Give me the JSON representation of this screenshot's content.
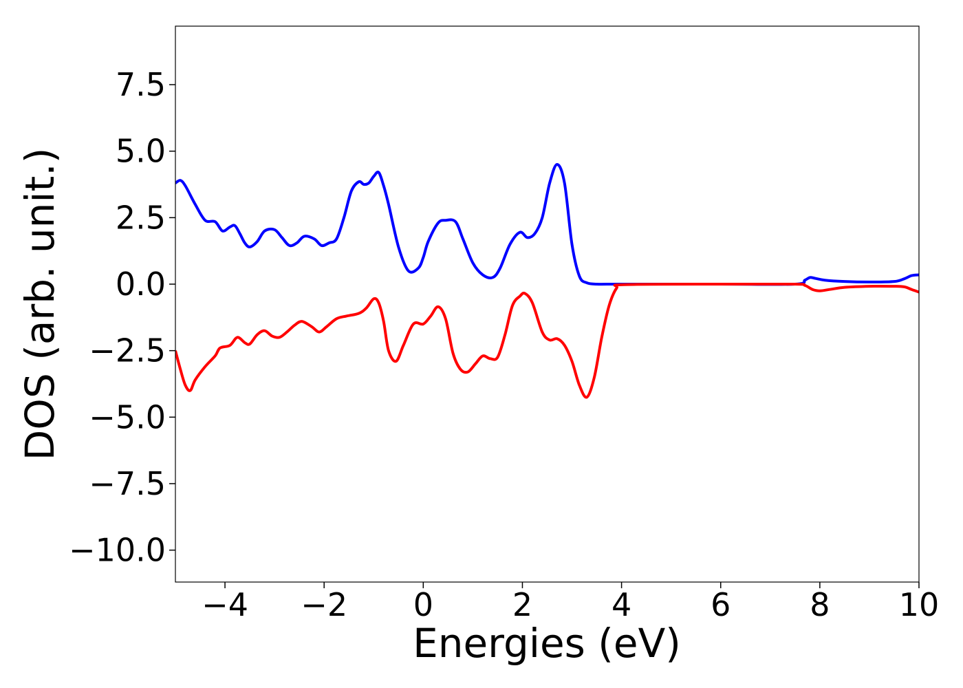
{
  "chart_data": {
    "type": "line",
    "title": "",
    "xlabel": "Energies (eV)",
    "ylabel": "DOS (arb. unit.)",
    "xlim": [
      -5,
      10
    ],
    "ylim": [
      -11.2,
      9.7
    ],
    "grid": false,
    "x_ticks": [
      "−4",
      "−2",
      "0",
      "2",
      "4",
      "6",
      "8",
      "10"
    ],
    "x_tick_values": [
      -4,
      -2,
      0,
      2,
      4,
      6,
      8,
      10
    ],
    "y_ticks": [
      "7.5",
      "5.0",
      "2.5",
      "0.0",
      "−2.5",
      "−5.0",
      "−7.5",
      "−10.0"
    ],
    "y_tick_values": [
      7.5,
      5.0,
      2.5,
      0.0,
      -2.5,
      -5.0,
      -7.5,
      -10.0
    ],
    "series": [
      {
        "color": "#0000ff",
        "x": [
          -5.0,
          -4.9,
          -4.8,
          -4.6,
          -4.4,
          -4.2,
          -4.05,
          -3.9,
          -3.8,
          -3.7,
          -3.6,
          -3.5,
          -3.35,
          -3.2,
          -3.0,
          -2.85,
          -2.7,
          -2.55,
          -2.4,
          -2.2,
          -2.05,
          -1.9,
          -1.75,
          -1.6,
          -1.45,
          -1.3,
          -1.2,
          -1.1,
          -1.0,
          -0.9,
          -0.8,
          -0.7,
          -0.5,
          -0.3,
          -0.1,
          0.0,
          0.1,
          0.3,
          0.45,
          0.65,
          0.8,
          1.0,
          1.2,
          1.4,
          1.55,
          1.75,
          1.95,
          2.1,
          2.25,
          2.4,
          2.55,
          2.7,
          2.85,
          3.0,
          3.15,
          3.3,
          3.5,
          3.8,
          4.0,
          6.0,
          7.5,
          7.7,
          7.8,
          7.9,
          8.1,
          8.5,
          9.0,
          9.5,
          9.7,
          9.85,
          10.0
        ],
        "values": [
          3.8,
          3.9,
          3.7,
          3.0,
          2.4,
          2.35,
          2.0,
          2.15,
          2.2,
          1.9,
          1.55,
          1.4,
          1.6,
          2.0,
          2.05,
          1.75,
          1.45,
          1.55,
          1.8,
          1.7,
          1.45,
          1.55,
          1.7,
          2.5,
          3.5,
          3.85,
          3.75,
          3.8,
          4.05,
          4.2,
          3.7,
          3.0,
          1.4,
          0.5,
          0.6,
          1.0,
          1.6,
          2.3,
          2.4,
          2.35,
          1.7,
          0.8,
          0.35,
          0.25,
          0.6,
          1.5,
          1.95,
          1.75,
          1.9,
          2.5,
          3.8,
          4.5,
          3.8,
          1.5,
          0.3,
          0.05,
          0.0,
          0.0,
          0.0,
          0.0,
          0.0,
          0.15,
          0.25,
          0.22,
          0.15,
          0.1,
          0.08,
          0.1,
          0.2,
          0.32,
          0.35
        ]
      },
      {
        "color": "#ff0000",
        "x": [
          -5.0,
          -4.9,
          -4.8,
          -4.7,
          -4.6,
          -4.4,
          -4.2,
          -4.1,
          -3.9,
          -3.75,
          -3.6,
          -3.5,
          -3.35,
          -3.2,
          -3.05,
          -2.9,
          -2.75,
          -2.6,
          -2.45,
          -2.25,
          -2.1,
          -1.95,
          -1.75,
          -1.55,
          -1.3,
          -1.15,
          -1.0,
          -0.9,
          -0.8,
          -0.7,
          -0.55,
          -0.4,
          -0.2,
          0.0,
          0.15,
          0.3,
          0.45,
          0.6,
          0.75,
          0.9,
          1.05,
          1.2,
          1.35,
          1.5,
          1.65,
          1.8,
          1.95,
          2.05,
          2.2,
          2.4,
          2.55,
          2.7,
          2.85,
          3.0,
          3.15,
          3.3,
          3.45,
          3.6,
          3.75,
          3.9,
          4.05,
          6.0,
          7.5,
          7.7,
          7.85,
          8.0,
          8.2,
          8.5,
          9.0,
          9.5,
          9.7,
          9.85,
          10.0
        ],
        "values": [
          -2.5,
          -3.2,
          -3.8,
          -4.0,
          -3.6,
          -3.1,
          -2.7,
          -2.4,
          -2.3,
          -2.0,
          -2.2,
          -2.25,
          -1.9,
          -1.75,
          -1.95,
          -2.0,
          -1.8,
          -1.55,
          -1.4,
          -1.6,
          -1.8,
          -1.6,
          -1.3,
          -1.2,
          -1.1,
          -0.9,
          -0.55,
          -0.7,
          -1.4,
          -2.5,
          -2.9,
          -2.3,
          -1.5,
          -1.5,
          -1.2,
          -0.85,
          -1.3,
          -2.6,
          -3.2,
          -3.3,
          -3.0,
          -2.7,
          -2.8,
          -2.75,
          -1.9,
          -0.8,
          -0.45,
          -0.35,
          -0.7,
          -1.8,
          -2.1,
          -2.05,
          -2.3,
          -2.9,
          -3.8,
          -4.25,
          -3.5,
          -2.0,
          -0.8,
          -0.15,
          -0.02,
          0.0,
          0.0,
          -0.05,
          -0.2,
          -0.25,
          -0.2,
          -0.12,
          -0.08,
          -0.08,
          -0.1,
          -0.2,
          -0.3
        ]
      }
    ]
  }
}
